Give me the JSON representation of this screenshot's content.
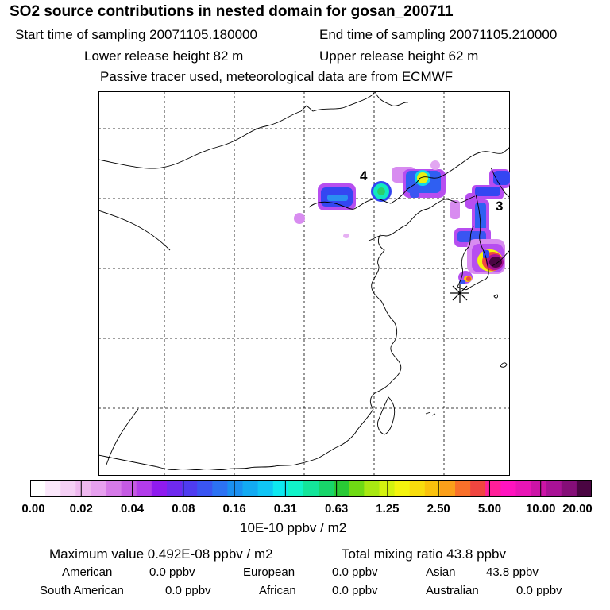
{
  "header": {
    "title": "SO2 source contributions in nested domain for gosan_200711",
    "start_time": "Start time of sampling 20071105.180000",
    "end_time": "End time of sampling 20071105.210000",
    "lower_release": "Lower release height   82 m",
    "upper_release": "Upper release height   62 m",
    "note": "Passive tracer used, meteorological data are from ECMWF"
  },
  "map": {
    "region_labels": [
      "4",
      "3"
    ],
    "receptor_marker": "asterisk-icon",
    "coast_color": "#000000",
    "grid_style": "dashed"
  },
  "colorbar": {
    "colors": [
      "#ffffff",
      "#fbe8fb",
      "#f5d0f5",
      "#efb8ef",
      "#e7a0ef",
      "#d67ae8",
      "#c55ae3",
      "#b23cea",
      "#8f1bef",
      "#6f2aef",
      "#4f3cf0",
      "#3a55f2",
      "#2c72f3",
      "#1a8ff1",
      "#13aaf2",
      "#10c5f5",
      "#0ee8f0",
      "#11f3c9",
      "#14e59a",
      "#18d56a",
      "#29c935",
      "#6fda14",
      "#a8e812",
      "#d3f20f",
      "#f4f40e",
      "#f8dd0d",
      "#fac20c",
      "#fb9f1a",
      "#f9702a",
      "#f04640",
      "#ff1f99",
      "#ff13bf",
      "#e915b6",
      "#cc14a7",
      "#a91296",
      "#850e78",
      "#4a0542"
    ],
    "tick_labels": [
      "0.00",
      "0.02",
      "0.04",
      "0.08",
      "0.16",
      "0.31",
      "0.63",
      "1.25",
      "2.50",
      "5.00",
      "10.00",
      "20.00"
    ],
    "unit": "10E-10 ppbv / m2"
  },
  "footer": {
    "max_value": "Maximum value  0.492E-08 ppbv / m2",
    "total_mixing": "Total mixing ratio       43.8 ppbv",
    "american": "American",
    "american_val": "0.0 ppbv",
    "european": "European",
    "european_val": "0.0 ppbv",
    "asian": "Asian",
    "asian_val": "43.8 ppbv",
    "south_american": "South American",
    "south_american_val": "0.0 ppbv",
    "african": "African",
    "african_val": "0.0 ppbv",
    "australian": "Australian",
    "australian_val": "0.0 ppbv"
  }
}
